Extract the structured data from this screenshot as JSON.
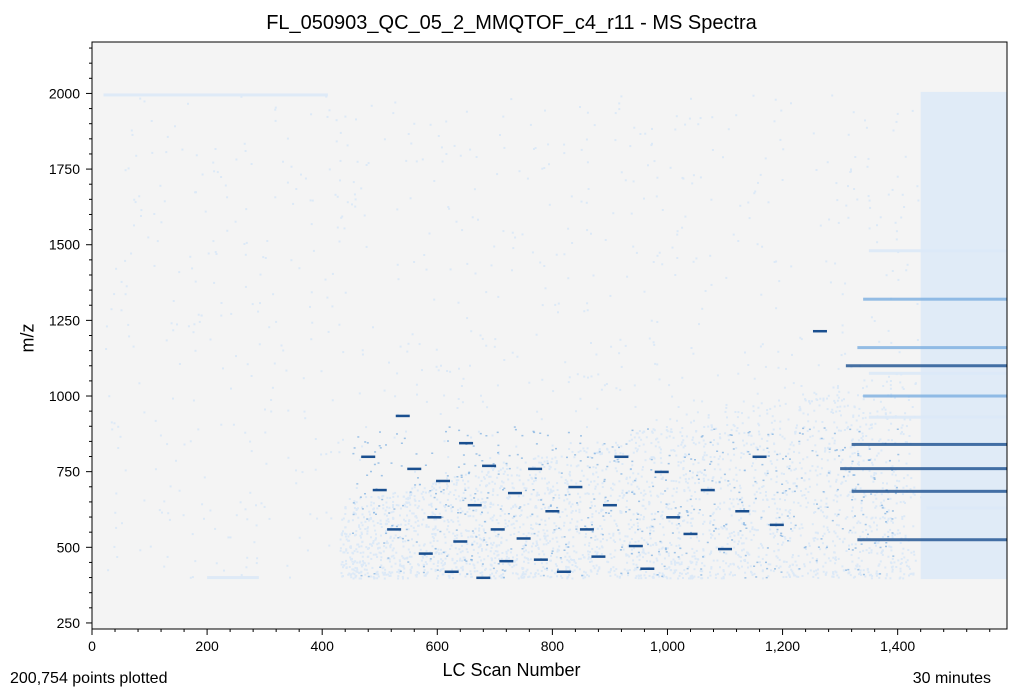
{
  "chart_data": {
    "type": "scatter",
    "title": "FL_050903_QC_05_2_MMQTOF_c4_r11 - MS Spectra",
    "xlabel": "LC Scan Number",
    "ylabel": "m/z",
    "xlim": [
      0,
      1590
    ],
    "ylim": [
      230,
      2170
    ],
    "x_ticks": [
      "0",
      "200",
      "400",
      "600",
      "800",
      "1,000",
      "1,200",
      "1,400"
    ],
    "x_tick_values": [
      0,
      200,
      400,
      600,
      800,
      1000,
      1200,
      1400
    ],
    "y_ticks": [
      "250",
      "500",
      "750",
      "1000",
      "1250",
      "1500",
      "1750",
      "2000"
    ],
    "y_tick_values": [
      250,
      500,
      750,
      1000,
      1250,
      1500,
      1750,
      2000
    ],
    "grid": false,
    "colors": {
      "background": "#f4f4f4",
      "low_intensity": "#dce9f7",
      "mid_intensity": "#7aaee0",
      "high_intensity": "#1a4f8f"
    },
    "bands": [
      {
        "x_start": 20,
        "x_end": 410,
        "mz": 1995,
        "intensity": "low"
      },
      {
        "x_start": 200,
        "x_end": 290,
        "mz": 400,
        "intensity": "low"
      },
      {
        "x_start": 1440,
        "x_end": 1590,
        "mz_min": 395,
        "mz_max": 2005,
        "intensity": "low",
        "kind": "block"
      },
      {
        "x_start": 1310,
        "x_end": 1590,
        "mz": 1100,
        "intensity": "high"
      },
      {
        "x_start": 1340,
        "x_end": 1590,
        "mz": 1320,
        "intensity": "mid"
      },
      {
        "x_start": 1320,
        "x_end": 1590,
        "mz": 840,
        "intensity": "high"
      },
      {
        "x_start": 1300,
        "x_end": 1590,
        "mz": 760,
        "intensity": "high"
      },
      {
        "x_start": 1320,
        "x_end": 1590,
        "mz": 685,
        "intensity": "high"
      },
      {
        "x_start": 1330,
        "x_end": 1590,
        "mz": 525,
        "intensity": "high"
      },
      {
        "x_start": 1340,
        "x_end": 1590,
        "mz": 1000,
        "intensity": "mid"
      },
      {
        "x_start": 1330,
        "x_end": 1590,
        "mz": 1160,
        "intensity": "mid"
      },
      {
        "x_start": 1350,
        "x_end": 1590,
        "mz": 1480,
        "intensity": "low"
      },
      {
        "x_start": 1350,
        "x_end": 1590,
        "mz": 1075,
        "intensity": "low"
      },
      {
        "x_start": 1350,
        "x_end": 1590,
        "mz": 930,
        "intensity": "low"
      },
      {
        "x_start": 1450,
        "x_end": 1590,
        "mz": 630,
        "intensity": "low"
      }
    ],
    "peaks": [
      {
        "x": 480,
        "mz": 800
      },
      {
        "x": 500,
        "mz": 690
      },
      {
        "x": 525,
        "mz": 560
      },
      {
        "x": 540,
        "mz": 935
      },
      {
        "x": 560,
        "mz": 760
      },
      {
        "x": 580,
        "mz": 480
      },
      {
        "x": 595,
        "mz": 600
      },
      {
        "x": 610,
        "mz": 720
      },
      {
        "x": 625,
        "mz": 420
      },
      {
        "x": 640,
        "mz": 520
      },
      {
        "x": 650,
        "mz": 845
      },
      {
        "x": 665,
        "mz": 640
      },
      {
        "x": 680,
        "mz": 400
      },
      {
        "x": 690,
        "mz": 770
      },
      {
        "x": 705,
        "mz": 560
      },
      {
        "x": 720,
        "mz": 455
      },
      {
        "x": 735,
        "mz": 680
      },
      {
        "x": 750,
        "mz": 530
      },
      {
        "x": 770,
        "mz": 760
      },
      {
        "x": 780,
        "mz": 460
      },
      {
        "x": 800,
        "mz": 620
      },
      {
        "x": 820,
        "mz": 420
      },
      {
        "x": 840,
        "mz": 700
      },
      {
        "x": 860,
        "mz": 560
      },
      {
        "x": 880,
        "mz": 470
      },
      {
        "x": 900,
        "mz": 640
      },
      {
        "x": 920,
        "mz": 800
      },
      {
        "x": 945,
        "mz": 505
      },
      {
        "x": 965,
        "mz": 430
      },
      {
        "x": 990,
        "mz": 750
      },
      {
        "x": 1010,
        "mz": 600
      },
      {
        "x": 1040,
        "mz": 545
      },
      {
        "x": 1070,
        "mz": 690
      },
      {
        "x": 1100,
        "mz": 495
      },
      {
        "x": 1130,
        "mz": 620
      },
      {
        "x": 1160,
        "mz": 800
      },
      {
        "x": 1190,
        "mz": 575
      },
      {
        "x": 1265,
        "mz": 1215
      }
    ]
  },
  "footer": {
    "points_plotted": "200,754 points plotted",
    "duration": "30 minutes"
  }
}
